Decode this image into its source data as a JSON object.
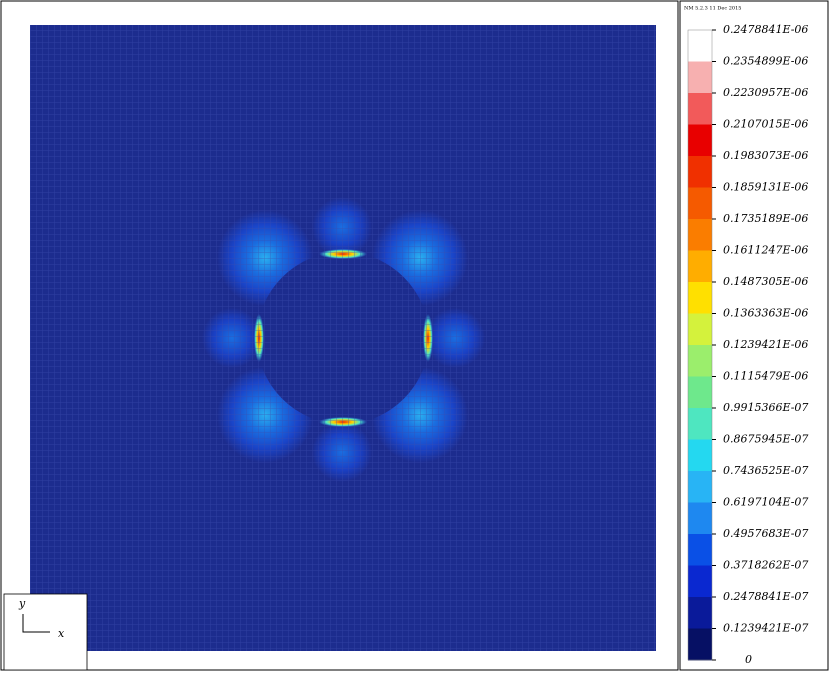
{
  "header": {
    "title": "NM 5.2.3 11 Dec 2015"
  },
  "legend": {
    "levels": [
      "0.2478841E-06",
      "0.2354899E-06",
      "0.2230957E-06",
      "0.2107015E-06",
      "0.1983073E-06",
      "0.1859131E-06",
      "0.1735189E-06",
      "0.1611247E-06",
      "0.1487305E-06",
      "0.1363363E-06",
      "0.1239421E-06",
      "0.1115479E-06",
      "0.9915366E-07",
      "0.8675945E-07",
      "0.7436525E-07",
      "0.6197104E-07",
      "0.4957683E-07",
      "0.3718262E-07",
      "0.2478841E-07",
      "0.1239421E-07",
      "0"
    ],
    "colors": [
      "#ffffff",
      "#f7b0b0",
      "#f25a5a",
      "#e80000",
      "#f03000",
      "#f55a00",
      "#fa7d00",
      "#ffad00",
      "#ffe000",
      "#d4f23c",
      "#9bee6c",
      "#6ee88c",
      "#4ee6c0",
      "#24d8f0",
      "#28b4f5",
      "#1e88f0",
      "#0a50e6",
      "#0a28d0",
      "#0a1a9a",
      "#061064"
    ]
  },
  "axes": {
    "x": "x",
    "y": "y"
  }
}
